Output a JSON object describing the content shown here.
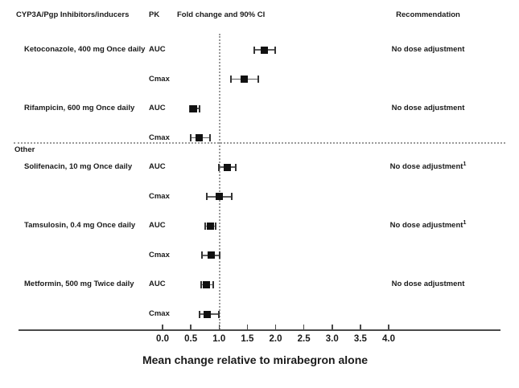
{
  "header": {
    "drug_column": "CYP3A/Pgp Inhibitors/inducers",
    "pk_column": "PK",
    "fold_column": "Fold change and 90% CI",
    "recommendation_column": "Recommendation"
  },
  "section_label": "Other",
  "chart_data": {
    "type": "forest",
    "title": "Fold change and 90% CI",
    "xlabel": "Mean change relative to mirabegron alone",
    "xlim": [
      0.0,
      4.0
    ],
    "xticks": [
      "0.0",
      "0.5",
      "1.0",
      "1.5",
      "2.0",
      "2.5",
      "3.0",
      "3.5",
      "4.0"
    ],
    "reference_line": 1.0,
    "grid": false,
    "legend": "none",
    "rows": [
      {
        "drug": "Ketoconazole, 400 mg Once daily",
        "pk": "AUC",
        "value": 1.8,
        "ci_low": 1.62,
        "ci_high": 1.99,
        "recommendation": "No dose adjustment",
        "rec_sup": ""
      },
      {
        "drug": "",
        "pk": "Cmax",
        "value": 1.45,
        "ci_low": 1.21,
        "ci_high": 1.7,
        "recommendation": "",
        "rec_sup": ""
      },
      {
        "drug": "Rifampicin, 600 mg Once daily",
        "pk": "AUC",
        "value": 0.55,
        "ci_low": 0.48,
        "ci_high": 0.65,
        "recommendation": "No dose adjustment",
        "rec_sup": ""
      },
      {
        "drug": "",
        "pk": "Cmax",
        "value": 0.65,
        "ci_low": 0.5,
        "ci_high": 0.84,
        "recommendation": "",
        "rec_sup": ""
      },
      {
        "drug": "Solifenacin, 10 mg Once daily",
        "pk": "AUC",
        "value": 1.14,
        "ci_low": 0.99,
        "ci_high": 1.3,
        "recommendation": "No dose adjustment",
        "rec_sup": "1"
      },
      {
        "drug": "",
        "pk": "Cmax",
        "value": 1.0,
        "ci_low": 0.78,
        "ci_high": 1.23,
        "recommendation": "",
        "rec_sup": ""
      },
      {
        "drug": "Tamsulosin, 0.4 mg Once daily",
        "pk": "AUC",
        "value": 0.85,
        "ci_low": 0.75,
        "ci_high": 0.94,
        "recommendation": "No dose adjustment",
        "rec_sup": "1"
      },
      {
        "drug": "",
        "pk": "Cmax",
        "value": 0.86,
        "ci_low": 0.7,
        "ci_high": 1.01,
        "recommendation": "",
        "rec_sup": ""
      },
      {
        "drug": "Metformin, 500 mg Twice daily",
        "pk": "AUC",
        "value": 0.77,
        "ci_low": 0.68,
        "ci_high": 0.89,
        "recommendation": "No dose adjustment",
        "rec_sup": ""
      },
      {
        "drug": "",
        "pk": "Cmax",
        "value": 0.79,
        "ci_low": 0.66,
        "ci_high": 0.99,
        "recommendation": "",
        "rec_sup": ""
      }
    ],
    "section_break_before_row": 4
  },
  "colors": {
    "text": "#1a1a1a",
    "marker": "#111111",
    "ci_line": "#5d5d5d",
    "dotted_guides": "#9a9a9a",
    "axis": "#4a4a4a",
    "background": "#ffffff"
  }
}
